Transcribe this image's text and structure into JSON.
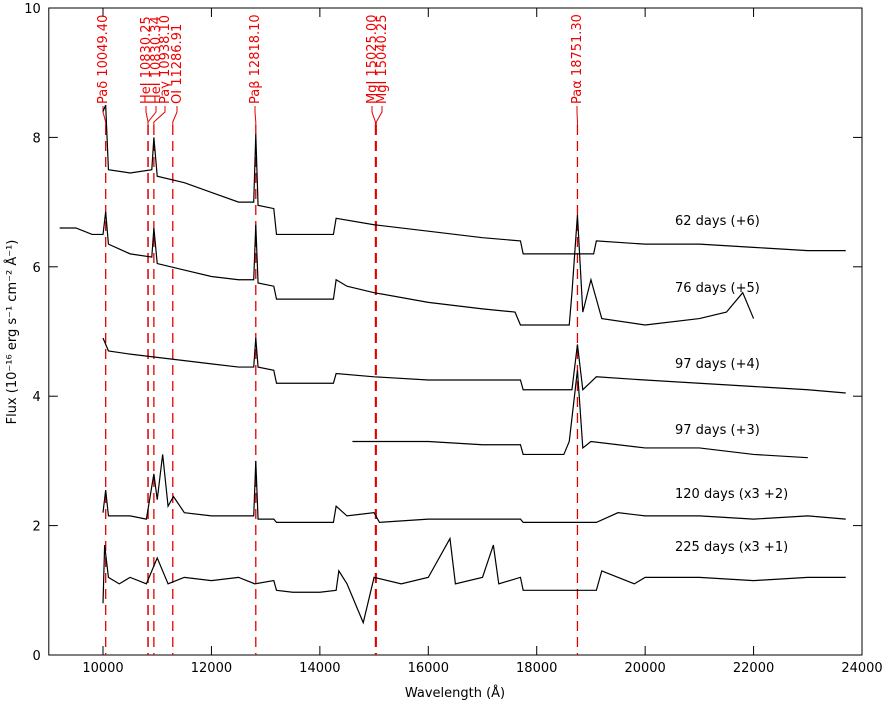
{
  "chart_data": {
    "type": "line",
    "xlabel": "Wavelength (Å)",
    "ylabel": "Flux (10⁻¹⁶ erg s⁻¹ cm⁻² Å⁻¹)",
    "xlim": [
      9000,
      24000
    ],
    "ylim": [
      0,
      10
    ],
    "xticks": [
      10000,
      12000,
      14000,
      16000,
      18000,
      20000,
      22000,
      24000
    ],
    "yticks": [
      0,
      2,
      4,
      6,
      8,
      10
    ],
    "line_color": "#e00000",
    "lines": [
      {
        "label": "Paδ 10049.40",
        "x": 10049.4
      },
      {
        "label": "HeI 10830.25",
        "x": 10830.25
      },
      {
        "label": "HeI 10830.34",
        "x": 10830.34
      },
      {
        "label": "Paγ 10938.10",
        "x": 10938.1
      },
      {
        "label": "OI 11286.91",
        "x": 11286.91
      },
      {
        "label": "Paβ 12818.10",
        "x": 12818.1
      },
      {
        "label": "MgI 15025.00",
        "x": 15025
      },
      {
        "label": "MgI 15040.25",
        "x": 15040.25
      },
      {
        "label": "Paα 18751.30",
        "x": 18751.3
      }
    ],
    "series": [
      {
        "name": "62 days (+6)",
        "color": "#000000",
        "x": [
          10000,
          10049,
          10100,
          10500,
          10900,
          10938,
          11000,
          11500,
          12000,
          12500,
          12780,
          12818,
          12860,
          13150,
          13200,
          14250,
          14300,
          15000,
          16000,
          17000,
          17700,
          17750,
          19050,
          19100,
          20000,
          21000,
          22000,
          23000,
          23700
        ],
        "values": [
          8.4,
          8.5,
          7.5,
          7.45,
          7.5,
          8.0,
          7.4,
          7.3,
          7.15,
          7.0,
          7.0,
          8.05,
          6.95,
          6.9,
          6.5,
          6.5,
          6.75,
          6.65,
          6.55,
          6.45,
          6.4,
          6.2,
          6.2,
          6.4,
          6.35,
          6.35,
          6.3,
          6.25,
          6.25
        ]
      },
      {
        "name": "76 days (+5)",
        "color": "#000000",
        "x": [
          9200,
          9500,
          9800,
          10000,
          10049,
          10100,
          10500,
          10900,
          10938,
          11000,
          11500,
          12000,
          12500,
          12780,
          12818,
          12860,
          13150,
          13200,
          14250,
          14300,
          14500,
          15000,
          16000,
          17000,
          17600,
          17700,
          18600,
          18650,
          18751,
          18850,
          19000,
          19200,
          20000,
          21000,
          21500,
          21800,
          22000
        ],
        "values": [
          6.6,
          6.6,
          6.5,
          6.5,
          6.85,
          6.35,
          6.2,
          6.15,
          6.6,
          6.05,
          5.95,
          5.85,
          5.8,
          5.8,
          6.65,
          5.75,
          5.7,
          5.5,
          5.5,
          5.8,
          5.7,
          5.6,
          5.45,
          5.35,
          5.3,
          5.1,
          5.1,
          5.6,
          6.8,
          5.3,
          5.8,
          5.2,
          5.1,
          5.2,
          5.3,
          5.6,
          5.2
        ]
      },
      {
        "name": "97 days (+4)",
        "color": "#000000",
        "x": [
          10000,
          10100,
          10500,
          11000,
          11500,
          12000,
          12500,
          12780,
          12818,
          12860,
          13150,
          13200,
          14250,
          14300,
          15000,
          16000,
          17000,
          17700,
          17750,
          18650,
          18751,
          18850,
          19100,
          20000,
          21000,
          22000,
          23000,
          23700
        ],
        "values": [
          4.9,
          4.7,
          4.65,
          4.6,
          4.55,
          4.5,
          4.45,
          4.45,
          4.9,
          4.45,
          4.4,
          4.2,
          4.2,
          4.35,
          4.3,
          4.25,
          4.25,
          4.25,
          4.1,
          4.1,
          4.8,
          4.1,
          4.3,
          4.25,
          4.2,
          4.15,
          4.1,
          4.05
        ]
      },
      {
        "name": "97 days (+3)",
        "color": "#000000",
        "x": [
          14600,
          15000,
          16000,
          17000,
          17700,
          17750,
          18500,
          18600,
          18751,
          18850,
          19000,
          20000,
          21000,
          22000,
          23000
        ],
        "values": [
          3.3,
          3.3,
          3.3,
          3.25,
          3.25,
          3.1,
          3.1,
          3.3,
          4.4,
          3.2,
          3.3,
          3.2,
          3.2,
          3.1,
          3.05
        ]
      },
      {
        "name": "120 days (x3 +2)",
        "color": "#000000",
        "x": [
          10000,
          10049,
          10100,
          10500,
          10800,
          10938,
          11000,
          11100,
          11200,
          11300,
          11500,
          12000,
          12500,
          12780,
          12818,
          12860,
          13150,
          13200,
          14250,
          14300,
          14500,
          15000,
          15100,
          16000,
          17000,
          17700,
          17750,
          19100,
          19500,
          20000,
          21000,
          22000,
          23000,
          23700
        ],
        "values": [
          2.2,
          2.55,
          2.15,
          2.15,
          2.1,
          2.8,
          2.4,
          3.1,
          2.3,
          2.45,
          2.2,
          2.15,
          2.15,
          2.15,
          3.0,
          2.1,
          2.1,
          2.05,
          2.05,
          2.3,
          2.15,
          2.2,
          2.05,
          2.1,
          2.1,
          2.1,
          2.05,
          2.05,
          2.2,
          2.15,
          2.15,
          2.1,
          2.15,
          2.1
        ]
      },
      {
        "name": "225 days (x3 +1)",
        "color": "#000000",
        "x": [
          10000,
          10030,
          10100,
          10300,
          10500,
          10800,
          11000,
          11200,
          11500,
          12000,
          12500,
          12800,
          13150,
          13200,
          13500,
          14000,
          14300,
          14350,
          14500,
          14800,
          15000,
          15500,
          16000,
          16400,
          16500,
          17000,
          17200,
          17300,
          17700,
          17750,
          19100,
          19200,
          19800,
          20000,
          21000,
          22000,
          23000,
          23700
        ],
        "values": [
          0.8,
          1.7,
          1.2,
          1.1,
          1.2,
          1.1,
          1.5,
          1.1,
          1.2,
          1.15,
          1.2,
          1.1,
          1.15,
          1.0,
          0.97,
          0.97,
          1.0,
          1.3,
          1.1,
          0.5,
          1.2,
          1.1,
          1.2,
          1.8,
          1.1,
          1.2,
          1.7,
          1.1,
          1.2,
          1.0,
          1.0,
          1.3,
          1.1,
          1.2,
          1.2,
          1.15,
          1.2,
          1.2
        ]
      }
    ]
  }
}
